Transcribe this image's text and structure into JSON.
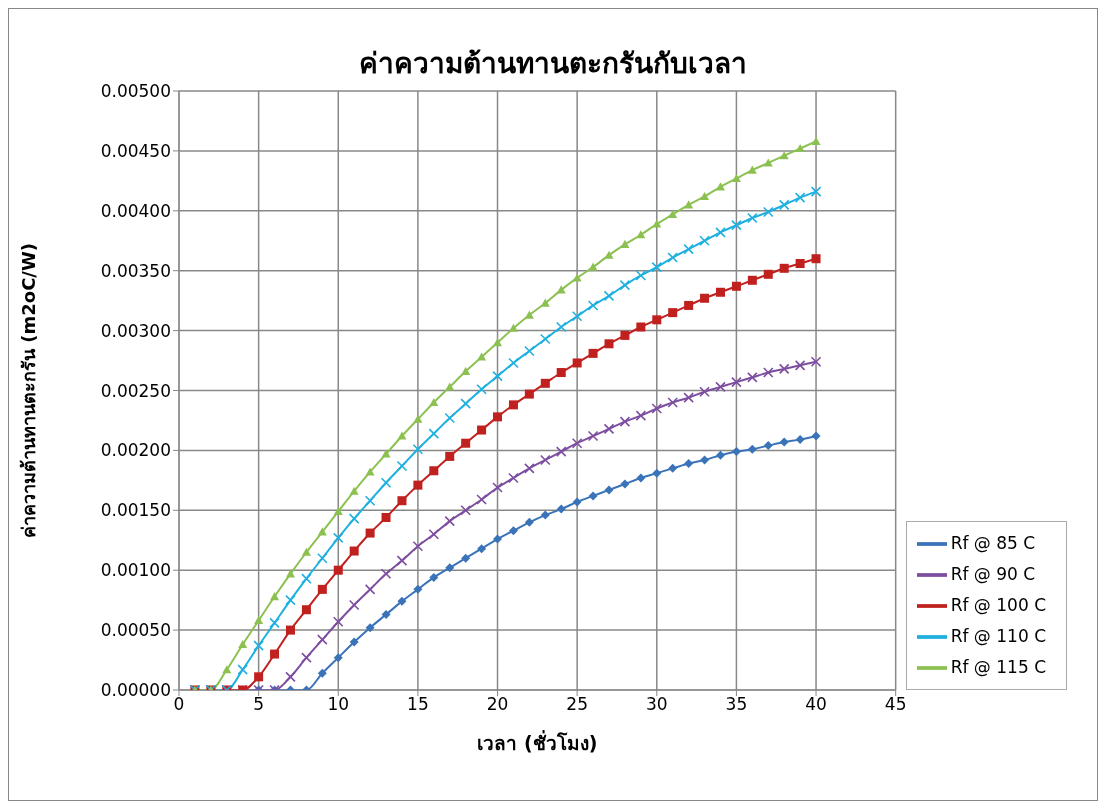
{
  "chart_data": {
    "type": "line",
    "title": "ค่าความต้านทานตะกรันกับเวลา",
    "xlabel": "เวลา (ชั่วโมง)",
    "ylabel": "ค่าความต้านทานตะกรัน (m2oC/W)",
    "x": [
      1,
      2,
      3,
      4,
      5,
      6,
      7,
      8,
      9,
      10,
      11,
      12,
      13,
      14,
      15,
      16,
      17,
      18,
      19,
      20,
      21,
      22,
      23,
      24,
      25,
      26,
      27,
      28,
      29,
      30,
      31,
      32,
      33,
      34,
      35,
      36,
      37,
      38,
      39,
      40
    ],
    "series": [
      {
        "name": "Rf @ 85 C",
        "color": "#3a73b8",
        "marker": "diamond",
        "values": [
          0,
          0,
          0,
          0,
          0,
          0,
          0,
          0,
          0.00014,
          0.00027,
          0.0004,
          0.00052,
          0.00063,
          0.00074,
          0.00084,
          0.00094,
          0.00102,
          0.0011,
          0.00118,
          0.00126,
          0.00133,
          0.0014,
          0.00146,
          0.00151,
          0.00157,
          0.00162,
          0.00167,
          0.00172,
          0.00177,
          0.00181,
          0.00185,
          0.00189,
          0.00192,
          0.00196,
          0.00199,
          0.00201,
          0.00204,
          0.00207,
          0.00209,
          0.00212
        ]
      },
      {
        "name": "Rf @ 90 C",
        "color": "#7d4ea0",
        "marker": "cross",
        "values": [
          0,
          0,
          0,
          0,
          0,
          0,
          0.00011,
          0.00027,
          0.00042,
          0.00057,
          0.00071,
          0.00084,
          0.00097,
          0.00108,
          0.0012,
          0.0013,
          0.00141,
          0.0015,
          0.00159,
          0.00169,
          0.00177,
          0.00185,
          0.00192,
          0.00199,
          0.00206,
          0.00212,
          0.00218,
          0.00224,
          0.00229,
          0.00235,
          0.0024,
          0.00244,
          0.00249,
          0.00253,
          0.00257,
          0.00261,
          0.00265,
          0.00268,
          0.00271,
          0.00274
        ]
      },
      {
        "name": "Rf @ 100 C",
        "color": "#c0201e",
        "marker": "square",
        "values": [
          0,
          0,
          0,
          0,
          0.00011,
          0.0003,
          0.0005,
          0.00067,
          0.00084,
          0.001,
          0.00116,
          0.00131,
          0.00144,
          0.00158,
          0.00171,
          0.00183,
          0.00195,
          0.00206,
          0.00217,
          0.00228,
          0.00238,
          0.00247,
          0.00256,
          0.00265,
          0.00273,
          0.00281,
          0.00289,
          0.00296,
          0.00303,
          0.00309,
          0.00315,
          0.00321,
          0.00327,
          0.00332,
          0.00337,
          0.00342,
          0.00347,
          0.00352,
          0.00356,
          0.0036
        ]
      },
      {
        "name": "Rf @ 110 C",
        "color": "#1fb0e0",
        "marker": "cross",
        "values": [
          0,
          0,
          0,
          0.00017,
          0.00037,
          0.00056,
          0.00075,
          0.00093,
          0.0011,
          0.00127,
          0.00143,
          0.00158,
          0.00173,
          0.00187,
          0.00201,
          0.00214,
          0.00227,
          0.00239,
          0.00251,
          0.00262,
          0.00273,
          0.00283,
          0.00293,
          0.00303,
          0.00312,
          0.00321,
          0.00329,
          0.00338,
          0.00346,
          0.00353,
          0.00361,
          0.00368,
          0.00375,
          0.00382,
          0.00388,
          0.00394,
          0.00399,
          0.00405,
          0.00411,
          0.00416
        ]
      },
      {
        "name": "Rf @ 115 C",
        "color": "#8cc152",
        "marker": "triangle",
        "values": [
          0,
          0,
          0.00017,
          0.00038,
          0.00058,
          0.00078,
          0.00097,
          0.00115,
          0.00132,
          0.00149,
          0.00166,
          0.00182,
          0.00197,
          0.00212,
          0.00226,
          0.0024,
          0.00253,
          0.00266,
          0.00278,
          0.0029,
          0.00302,
          0.00313,
          0.00323,
          0.00334,
          0.00344,
          0.00353,
          0.00363,
          0.00372,
          0.0038,
          0.00389,
          0.00397,
          0.00405,
          0.00412,
          0.0042,
          0.00427,
          0.00434,
          0.0044,
          0.00446,
          0.00452,
          0.00458
        ]
      }
    ],
    "xlim": [
      0,
      45
    ],
    "xticks": [
      0,
      5,
      10,
      15,
      20,
      25,
      30,
      35,
      40,
      45
    ],
    "ylim": [
      0,
      0.005
    ],
    "yticks": [
      {
        "value": 0,
        "label": "0.00000"
      },
      {
        "value": 0.0005,
        "label": "0.00050"
      },
      {
        "value": 0.001,
        "label": "0.00100"
      },
      {
        "value": 0.0015,
        "label": "0.00150"
      },
      {
        "value": 0.002,
        "label": "0.00200"
      },
      {
        "value": 0.0025,
        "label": "0.00250"
      },
      {
        "value": 0.003,
        "label": "0.00300"
      },
      {
        "value": 0.0035,
        "label": "0.00350"
      },
      {
        "value": 0.004,
        "label": "0.00400"
      },
      {
        "value": 0.0045,
        "label": "0.00450"
      },
      {
        "value": 0.005,
        "label": "0.00500"
      }
    ],
    "grid": true,
    "legend": "bottom right",
    "line_style": "solid"
  }
}
